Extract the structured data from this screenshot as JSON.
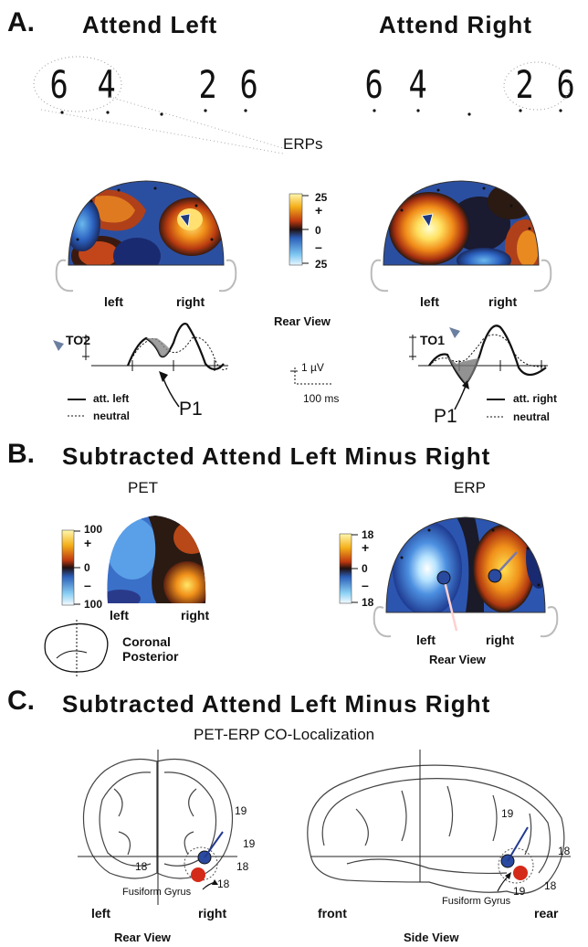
{
  "sectionA": {
    "letter": "A.",
    "attend_left": "Attend  Left",
    "attend_right": "Attend  Right",
    "digits_left_1": "6",
    "digits_left_2": "4",
    "digits_left_3": "2",
    "digits_left_4": "6",
    "digits_right_1": "6",
    "digits_right_2": "4",
    "digits_right_3": "2",
    "digits_right_4": "6",
    "erps": "ERPs",
    "left_head": {
      "left": "left",
      "right": "right",
      "electrode": "TO2",
      "peak": "P1",
      "legend_solid": "att.  left",
      "legend_dotted": "neutral"
    },
    "right_head": {
      "left": "left",
      "right": "right",
      "electrode": "TO1",
      "peak": "P1",
      "legend_solid": "att.  right",
      "legend_dotted": "neutral"
    },
    "scale": {
      "top": "25",
      "plus": "+",
      "zero": "0",
      "minus": "–",
      "bottom": "25"
    },
    "rear_view": "Rear  View",
    "calib_uv": "1 µV",
    "calib_ms": "100 ms"
  },
  "sectionB": {
    "letter": "B.",
    "title": "Subtracted Attend Left Minus Right",
    "pet": "PET",
    "erp": "ERP",
    "pet_scale": {
      "top": "100",
      "plus": "+",
      "zero": "0",
      "minus": "–",
      "bottom": "100"
    },
    "erp_scale": {
      "top": "18",
      "plus": "+",
      "zero": "0",
      "minus": "–",
      "bottom": "18"
    },
    "pet_left": "left",
    "pet_right": "right",
    "coronal": "Coronal",
    "posterior": "Posterior",
    "erp_left": "left",
    "erp_right": "right",
    "rear_view": "Rear  View"
  },
  "sectionC": {
    "letter": "C.",
    "title": "Subtracted Attend Left Minus Right",
    "subtitle": "PET-ERP  CO-Localization",
    "rear": {
      "n19a": "19",
      "n19b": "19",
      "n18a": "18",
      "n18b": "18",
      "n18c": "18",
      "fusiform": "Fusiform Gyrus",
      "left": "left",
      "right": "right",
      "caption": "Rear  View"
    },
    "side": {
      "n19a": "19",
      "n19b": "19",
      "n18a": "18",
      "n18b": "18",
      "fusiform": "Fusiform Gyrus",
      "front": "front",
      "rear": "rear",
      "caption": "Side  View"
    }
  },
  "colors": {
    "warm": "#f2a21a",
    "hot": "#fff07a",
    "cold": "#2c5fb8",
    "coldLight": "#8fd0f5",
    "dark": "#2a1a12",
    "red": "#d42a1a"
  }
}
